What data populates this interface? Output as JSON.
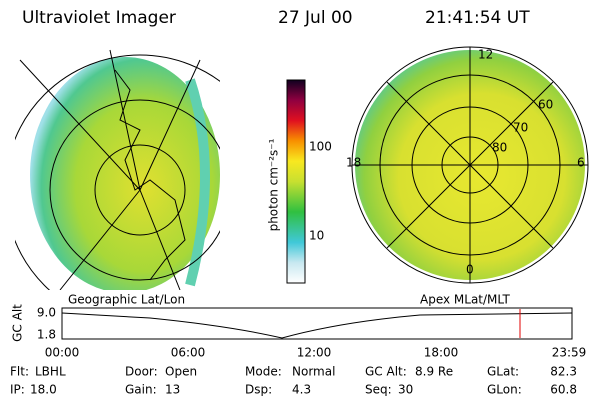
{
  "header": {
    "title": "Ultraviolet Imager",
    "date": "27 Jul 00",
    "time": "21:41:54 UT"
  },
  "colorbar": {
    "label": "photon cm⁻²s⁻¹",
    "ticks": [
      "100",
      "10"
    ]
  },
  "left_image": {
    "label": "Geographic Lat/Lon"
  },
  "right_image": {
    "label": "Apex MLat/MLT",
    "mlt_labels": [
      "12",
      "18",
      "6",
      "0"
    ],
    "lat_labels": [
      "60",
      "70",
      "80"
    ]
  },
  "altitude_plot": {
    "ylabel": "GC Alt",
    "yticks": [
      "9.0",
      "1.8"
    ],
    "xticks": [
      "00:00",
      "06:00",
      "12:00",
      "18:00",
      "23:59"
    ]
  },
  "footer": {
    "rows": [
      [
        {
          "label": "Flt:",
          "value": "LBHL"
        },
        {
          "label": "Door:",
          "value": "Open"
        },
        {
          "label": "Mode:",
          "value": "Normal"
        },
        {
          "label": "GC Alt:",
          "value": "8.9 Re"
        },
        {
          "label": "GLat:",
          "value": "82.3"
        }
      ],
      [
        {
          "label": "IP:",
          "value": "18.0"
        },
        {
          "label": "Gain:",
          "value": "13"
        },
        {
          "label": "Dsp:",
          "value": "4.3"
        },
        {
          "label": "Seq:",
          "value": "30"
        },
        {
          "label": "GLon:",
          "value": "60.8"
        }
      ]
    ]
  }
}
